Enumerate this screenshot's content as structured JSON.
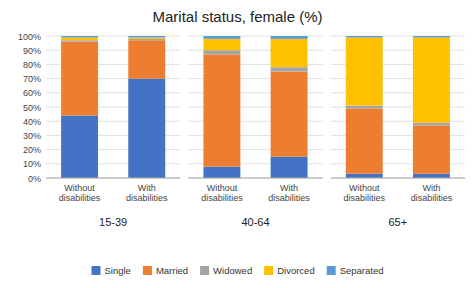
{
  "chart_data": [
    {
      "type": "bar",
      "stacked": true,
      "grid": true,
      "legend": "bottom",
      "title": "Marital status, female (%)",
      "xlabel": "15-39",
      "categories": [
        "Without\ndisabilities",
        "With\ndisabilities"
      ],
      "series": [
        {
          "name": "Single",
          "color": "#4472C4",
          "values": [
            44,
            70
          ]
        },
        {
          "name": "Married",
          "color": "#ED7D31",
          "values": [
            52,
            27
          ]
        },
        {
          "name": "Widowed",
          "color": "#A5A5A5",
          "values": [
            1,
            1
          ]
        },
        {
          "name": "Divorced",
          "color": "#FFC000",
          "values": [
            2,
            1
          ]
        },
        {
          "name": "Separated",
          "color": "#5B9BD5",
          "values": [
            1,
            1
          ]
        }
      ],
      "ylim": [
        0,
        100
      ],
      "yticks": [
        {
          "value": 0,
          "label": "0%"
        },
        {
          "value": 10,
          "label": "10%"
        },
        {
          "value": 20,
          "label": "20%"
        },
        {
          "value": 30,
          "label": "30%"
        },
        {
          "value": 40,
          "label": "40%"
        },
        {
          "value": 50,
          "label": "50%"
        },
        {
          "value": 60,
          "label": "60%"
        },
        {
          "value": 70,
          "label": "70%"
        },
        {
          "value": 80,
          "label": "80%"
        },
        {
          "value": 90,
          "label": "90%"
        },
        {
          "value": 100,
          "label": "100%"
        }
      ]
    },
    {
      "type": "bar",
      "stacked": true,
      "grid": true,
      "tick_labels": "x",
      "xlabel": "40-64",
      "categories": [
        "Without\ndisabilities",
        "With\ndisabilities"
      ],
      "series": [
        {
          "color": "#4472C4",
          "values": [
            8,
            15
          ]
        },
        {
          "color": "#ED7D31",
          "values": [
            79,
            60
          ]
        },
        {
          "color": "#A5A5A5",
          "values": [
            3,
            3
          ]
        },
        {
          "color": "#FFC000",
          "values": [
            8,
            20
          ]
        },
        {
          "color": "#5B9BD5",
          "values": [
            2,
            2
          ]
        }
      ],
      "ylim": [
        0,
        100
      ],
      "yticks": [
        0,
        10,
        20,
        30,
        40,
        50,
        60,
        70,
        80,
        90,
        100
      ]
    },
    {
      "type": "bar",
      "stacked": true,
      "grid": true,
      "tick_labels": "x",
      "xlabel": "65+",
      "categories": [
        "Without\ndisabilities",
        "With\ndisabilities"
      ],
      "series": [
        {
          "color": "#4472C4",
          "values": [
            3,
            3
          ]
        },
        {
          "color": "#ED7D31",
          "values": [
            46,
            34
          ]
        },
        {
          "color": "#A5A5A5",
          "values": [
            2,
            2
          ]
        },
        {
          "color": "#FFC000",
          "values": [
            48,
            60
          ]
        },
        {
          "color": "#5B9BD5",
          "values": [
            1,
            1
          ]
        }
      ],
      "ylim": [
        0,
        100
      ],
      "yticks": [
        0,
        10,
        20,
        30,
        40,
        50,
        60,
        70,
        80,
        90,
        100
      ]
    }
  ]
}
